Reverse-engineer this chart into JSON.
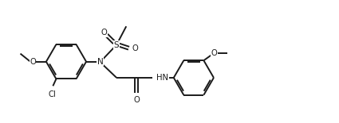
{
  "bg_color": "#ffffff",
  "line_color": "#1a1a1a",
  "line_width": 1.4,
  "figsize": [
    4.25,
    1.55
  ],
  "dpi": 100,
  "xlim": [
    0,
    10.5
  ],
  "ylim": [
    0,
    3.65
  ]
}
